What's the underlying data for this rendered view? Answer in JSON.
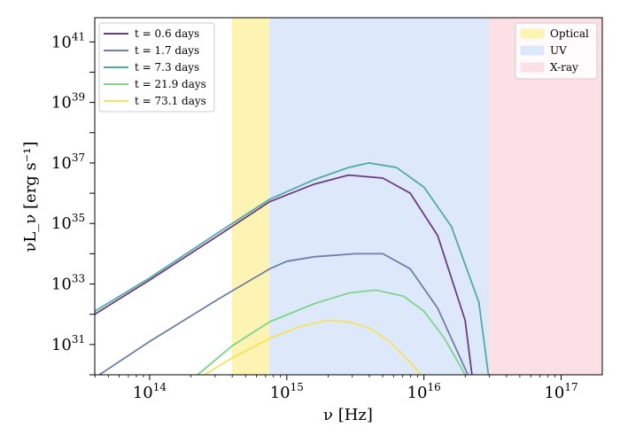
{
  "chart_data": {
    "type": "line",
    "x_scale": "log",
    "y_scale": "log",
    "xlim_log10": [
      13.6,
      17.3
    ],
    "ylim_log10": [
      30.0,
      41.8
    ],
    "xlabel": "ν [Hz]",
    "ylabel": "νL_ν [erg s⁻¹]",
    "x_ticks": [
      {
        "base": "10",
        "exp": "14",
        "log10": 14
      },
      {
        "base": "10",
        "exp": "15",
        "log10": 15
      },
      {
        "base": "10",
        "exp": "16",
        "log10": 16
      },
      {
        "base": "10",
        "exp": "17",
        "log10": 17
      }
    ],
    "y_ticks": [
      {
        "base": "10",
        "exp": "31",
        "log10": 31
      },
      {
        "base": "10",
        "exp": "33",
        "log10": 33
      },
      {
        "base": "10",
        "exp": "35",
        "log10": 35
      },
      {
        "base": "10",
        "exp": "37",
        "log10": 37
      },
      {
        "base": "10",
        "exp": "39",
        "log10": 39
      },
      {
        "base": "10",
        "exp": "41",
        "log10": 41
      }
    ],
    "bands": [
      {
        "name": "Optical",
        "from_log10": 14.6,
        "to_log10": 14.875,
        "color": "#fdf3b3"
      },
      {
        "name": "UV",
        "from_log10": 14.875,
        "to_log10": 16.477,
        "color": "#dde9fb"
      },
      {
        "name": "X-ray",
        "from_log10": 16.477,
        "to_log10": 17.3,
        "color": "#fbe0e6"
      }
    ],
    "series": [
      {
        "name": "t = 0.6 days",
        "color": "#6b3d7e",
        "points": [
          [
            13.6,
            32.0
          ],
          [
            14.0,
            33.13
          ],
          [
            14.5,
            34.6
          ],
          [
            14.875,
            35.72
          ],
          [
            15.2,
            36.3
          ],
          [
            15.45,
            36.6
          ],
          [
            15.7,
            36.5
          ],
          [
            15.9,
            36.0
          ],
          [
            16.1,
            34.6
          ],
          [
            16.3,
            31.8
          ],
          [
            16.35,
            30.0
          ]
        ]
      },
      {
        "name": "t = 1.7 days",
        "color": "#6e7fa4",
        "points": [
          [
            13.6,
            29.9
          ],
          [
            14.0,
            31.1
          ],
          [
            14.5,
            32.5
          ],
          [
            14.875,
            33.5
          ],
          [
            15.0,
            33.75
          ],
          [
            15.2,
            33.9
          ],
          [
            15.5,
            34.0
          ],
          [
            15.7,
            34.0
          ],
          [
            15.9,
            33.5
          ],
          [
            16.1,
            32.2
          ],
          [
            16.3,
            30.2
          ],
          [
            16.32,
            30.0
          ]
        ]
      },
      {
        "name": "t = 7.3 days",
        "color": "#52aba3",
        "points": [
          [
            13.6,
            32.1
          ],
          [
            14.0,
            33.2
          ],
          [
            14.5,
            34.7
          ],
          [
            14.875,
            35.8
          ],
          [
            15.2,
            36.45
          ],
          [
            15.45,
            36.85
          ],
          [
            15.6,
            37.0
          ],
          [
            15.8,
            36.85
          ],
          [
            16.0,
            36.2
          ],
          [
            16.2,
            34.9
          ],
          [
            16.4,
            32.4
          ],
          [
            16.47,
            30.0
          ]
        ]
      },
      {
        "name": "t = 21.9 days",
        "color": "#7fd48a",
        "points": [
          [
            14.35,
            30.0
          ],
          [
            14.6,
            30.95
          ],
          [
            14.875,
            31.75
          ],
          [
            15.2,
            32.35
          ],
          [
            15.45,
            32.7
          ],
          [
            15.65,
            32.8
          ],
          [
            15.85,
            32.6
          ],
          [
            16.0,
            32.1
          ],
          [
            16.15,
            31.2
          ],
          [
            16.3,
            30.0
          ]
        ]
      },
      {
        "name": "t = 73.1 days",
        "color": "#f5e35a",
        "points": [
          [
            14.4,
            30.0
          ],
          [
            14.6,
            30.55
          ],
          [
            14.875,
            31.2
          ],
          [
            15.1,
            31.6
          ],
          [
            15.3,
            31.8
          ],
          [
            15.45,
            31.75
          ],
          [
            15.6,
            31.55
          ],
          [
            15.75,
            31.1
          ],
          [
            15.9,
            30.4
          ],
          [
            15.98,
            30.0
          ]
        ]
      }
    ]
  }
}
